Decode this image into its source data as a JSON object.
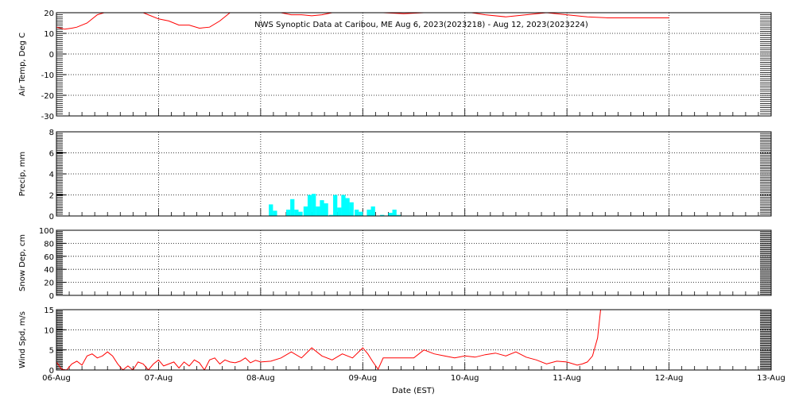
{
  "title": "NWS Synoptic Data at Caribou, ME   Aug  6, 2023(2023218) - Aug 12, 2023(2023224)",
  "xlabel": "Date (EST)",
  "colors": {
    "temp": "#ff0000",
    "precip": "#00ffff",
    "wind": "#ff0000",
    "grid": "#000000",
    "frame": "#000000"
  },
  "chart_data": [
    {
      "type": "line",
      "name": "airtemp",
      "ylabel": "Air Temp, Deg C",
      "ylim": [
        -30,
        20
      ],
      "yticks": [
        -30,
        -20,
        -10,
        0,
        10,
        20
      ],
      "xlim": [
        0,
        7
      ],
      "x": [
        0,
        0.08,
        0.15,
        0.2,
        0.3,
        0.4,
        0.5,
        0.6,
        0.7,
        0.8,
        0.9,
        1.0,
        1.1,
        1.2,
        1.3,
        1.4,
        1.5,
        1.6,
        1.7,
        1.8,
        1.9,
        2.0,
        2.1,
        2.2,
        2.3,
        2.4,
        2.5,
        2.6,
        2.7,
        2.8,
        2.9,
        3.0,
        3.2,
        3.4,
        3.6,
        3.8,
        4.0,
        4.2,
        4.4,
        4.6,
        4.8,
        5.0,
        5.2,
        5.4,
        5.6,
        5.8,
        6.0
      ],
      "y": [
        13,
        12,
        12.5,
        13,
        15,
        19,
        20.5,
        20,
        22,
        21,
        19,
        17,
        16,
        14,
        14,
        12.5,
        13,
        16,
        20,
        22,
        23,
        22,
        21,
        20,
        19,
        19,
        18.5,
        19,
        20,
        21,
        21.5,
        21,
        20,
        19.5,
        20,
        21,
        20.5,
        19,
        18,
        19,
        20,
        19,
        18,
        17.5,
        17.5,
        17.5,
        17.5
      ],
      "grid": true
    },
    {
      "type": "bar",
      "name": "precip",
      "ylabel": "Precip, mm",
      "ylim": [
        0,
        8
      ],
      "yticks": [
        0,
        2,
        4,
        6,
        8
      ],
      "xlim": [
        0,
        7
      ],
      "bar_width": 0.041,
      "x": [
        2.08,
        2.12,
        2.25,
        2.29,
        2.33,
        2.37,
        2.42,
        2.46,
        2.5,
        2.54,
        2.58,
        2.62,
        2.67,
        2.71,
        2.75,
        2.79,
        2.83,
        2.87,
        2.92,
        2.96,
        3.04,
        3.08,
        3.17,
        3.25,
        3.29,
        3.33
      ],
      "values": [
        1.1,
        0.5,
        0.6,
        1.6,
        0.6,
        0.4,
        0.9,
        2.0,
        2.1,
        0.9,
        1.5,
        1.2,
        0.1,
        2.0,
        0.8,
        2.0,
        1.7,
        1.3,
        0.6,
        0.4,
        0.6,
        0.9,
        0.1,
        0.3,
        0.6,
        0.1
      ],
      "grid": true
    },
    {
      "type": "line",
      "name": "snowdepth",
      "ylabel": "Snow Dep, cm",
      "ylim": [
        0,
        100
      ],
      "yticks": [
        0,
        20,
        40,
        60,
        80,
        100
      ],
      "xlim": [
        0,
        7
      ],
      "x": [],
      "y": [],
      "grid": true
    },
    {
      "type": "line",
      "name": "windspeed",
      "ylabel": "Wind Spd, m/s",
      "ylim": [
        0,
        15
      ],
      "yticks": [
        0,
        5,
        10,
        15
      ],
      "xlim": [
        0,
        7
      ],
      "xticks": [
        0,
        1,
        2,
        3,
        4,
        5,
        6,
        7
      ],
      "xticklabels": [
        "06-Aug",
        "07-Aug",
        "08-Aug",
        "09-Aug",
        "10-Aug",
        "11-Aug",
        "12-Aug",
        "13-Aug"
      ],
      "x": [
        0,
        0.05,
        0.1,
        0.15,
        0.2,
        0.25,
        0.3,
        0.35,
        0.4,
        0.45,
        0.5,
        0.55,
        0.6,
        0.65,
        0.7,
        0.75,
        0.8,
        0.85,
        0.9,
        0.95,
        1.0,
        1.05,
        1.1,
        1.15,
        1.2,
        1.25,
        1.3,
        1.35,
        1.4,
        1.45,
        1.5,
        1.55,
        1.6,
        1.65,
        1.7,
        1.75,
        1.8,
        1.85,
        1.9,
        1.95,
        2.0,
        2.1,
        2.2,
        2.3,
        2.4,
        2.5,
        2.6,
        2.7,
        2.8,
        2.9,
        3.0,
        3.05,
        3.1,
        3.15,
        3.2,
        3.3,
        3.4,
        3.5,
        3.6,
        3.7,
        3.8,
        3.9,
        4.0,
        4.1,
        4.2,
        4.3,
        4.4,
        4.5,
        4.6,
        4.7,
        4.8,
        4.9,
        5.0,
        5.1,
        5.15,
        5.2,
        5.25,
        5.3,
        5.33
      ],
      "y": [
        2,
        0.2,
        0,
        1.5,
        2.2,
        1.2,
        3.5,
        4,
        3,
        3.5,
        4.5,
        3.5,
        1.5,
        0,
        1,
        0,
        2,
        1.5,
        0,
        1.5,
        2.5,
        1,
        1.5,
        2,
        0.5,
        2,
        1,
        2.5,
        1.8,
        0,
        2.5,
        3,
        1.5,
        2.5,
        2,
        1.8,
        2.2,
        3,
        1.8,
        2.4,
        2,
        2.2,
        3,
        4.5,
        3,
        5.5,
        3.5,
        2.5,
        4,
        3,
        5.5,
        4,
        2,
        0.2,
        3,
        3,
        3,
        3,
        5,
        4,
        3.5,
        3,
        3.5,
        3.2,
        3.8,
        4.2,
        3.5,
        4.5,
        3.2,
        2.5,
        1.5,
        2.2,
        2,
        1.2,
        1.5,
        2,
        3.5,
        8,
        15
      ],
      "grid": true
    }
  ]
}
